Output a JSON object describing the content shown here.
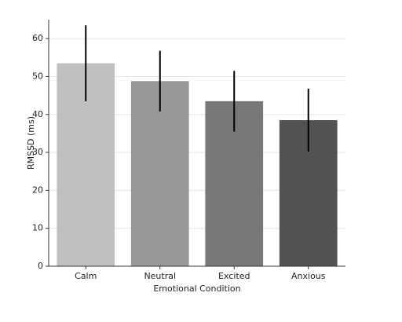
{
  "chart_data": {
    "type": "bar",
    "xlabel": "Emotional Condition",
    "ylabel": "RMSSD (ms)",
    "categories": [
      "Calm",
      "Neutral",
      "Excited",
      "Anxious"
    ],
    "values": [
      53.5,
      48.8,
      43.5,
      38.5
    ],
    "errors": [
      10,
      8,
      8,
      8.3
    ],
    "colors": [
      "#c0c0c0",
      "#989898",
      "#787878",
      "#525252"
    ],
    "ylim": [
      0,
      65
    ],
    "yticks": [
      0,
      10,
      20,
      30,
      40,
      50,
      60
    ],
    "grid": true
  }
}
